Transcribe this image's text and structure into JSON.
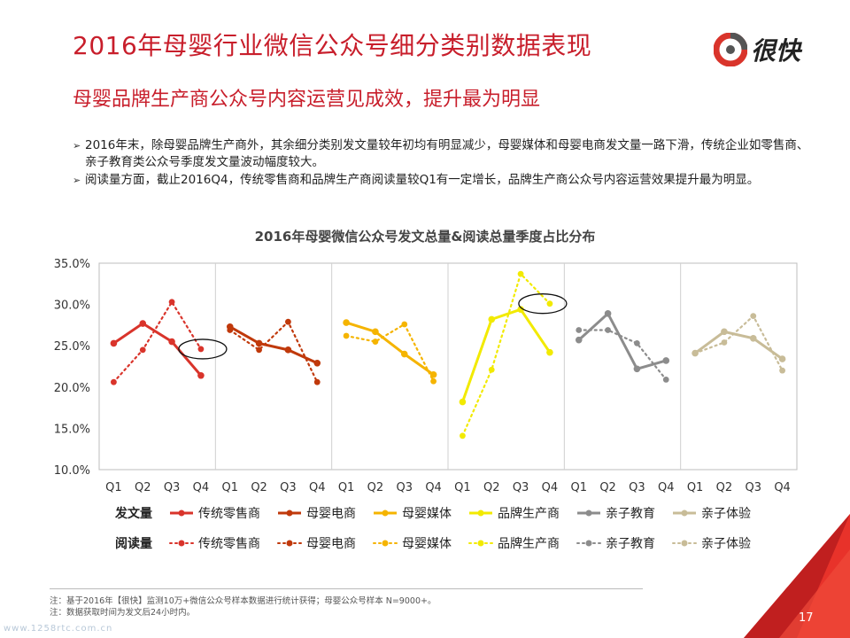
{
  "header": {
    "title": "2016年母婴行业微信公众号细分类别数据表现",
    "subtitle": "母婴品牌生产商公众号内容运营见成效，提升最为明显",
    "logo_text": "很快"
  },
  "bullets": [
    "2016年末，除母婴品牌生产商外，其余细分类别发文量较年初均有明显减少，母婴媒体和母婴电商发文量一路下滑，传统企业如零售商、亲子教育类公众号季度发文量波动幅度较大。",
    "阅读量方面，截止2016Q4，传统零售商和品牌生产商阅读量较Q1有一定增长，品牌生产商公众号内容运营效果提升最为明显。"
  ],
  "legend": {
    "post_header": "发文量",
    "read_header": "阅读量"
  },
  "chart_data": {
    "type": "line",
    "title": "2016年母婴微信公众号发文总量&阅读总量季度占比分布",
    "y_ticks": [
      "35.0%",
      "30.0%",
      "25.0%",
      "20.0%",
      "15.0%",
      "10.0%"
    ],
    "ylim": [
      10,
      35
    ],
    "quarters": [
      "Q1",
      "Q2",
      "Q3",
      "Q4"
    ],
    "groups": [
      {
        "name": "传统零售商",
        "color": "#d9342b",
        "posts": [
          25.3,
          27.7,
          25.5,
          21.4
        ],
        "reads": [
          20.6,
          24.5,
          30.3,
          24.6
        ]
      },
      {
        "name": "母婴电商",
        "color": "#c0390b",
        "posts": [
          27.3,
          25.3,
          24.5,
          22.9
        ],
        "reads": [
          26.9,
          24.5,
          27.9,
          20.6
        ]
      },
      {
        "name": "母婴媒体",
        "color": "#f5b400",
        "posts": [
          27.8,
          26.7,
          24.0,
          21.5
        ],
        "reads": [
          26.2,
          25.5,
          27.6,
          20.7
        ]
      },
      {
        "name": "品牌生产商",
        "color": "#f2ea00",
        "posts": [
          18.2,
          28.2,
          29.4,
          24.2
        ],
        "reads": [
          14.1,
          22.1,
          33.7,
          30.1
        ]
      },
      {
        "name": "亲子教育",
        "color": "#8c8c8c",
        "posts": [
          25.7,
          28.9,
          22.2,
          23.2
        ],
        "reads": [
          26.9,
          26.9,
          25.3,
          20.9
        ]
      },
      {
        "name": "亲子体验",
        "color": "#c8bc98",
        "posts": [
          24.1,
          26.7,
          25.9,
          23.4
        ],
        "reads": [
          24.1,
          25.4,
          28.6,
          22.0
        ]
      }
    ]
  },
  "footer": {
    "notes": [
      "注：基于2016年【很快】监测10万+微信公众号样本数据进行统计获得；母婴公众号样本 N=9000+。",
      "注：数据获取时间为发文后24小时内。"
    ],
    "page_number": "17",
    "watermark": "www.1258rtc.com.cn"
  }
}
